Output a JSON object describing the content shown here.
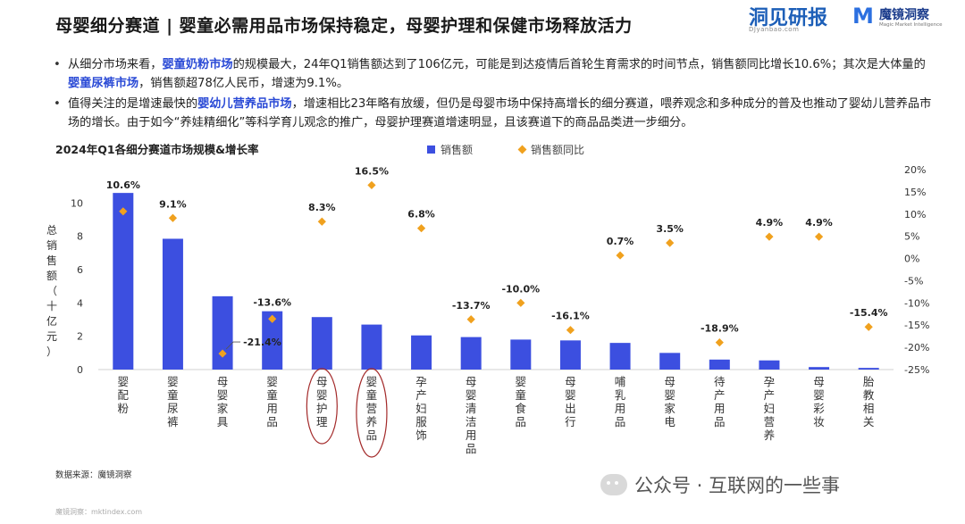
{
  "header": {
    "title": "母婴细分赛道 | 婴童必需用品市场保持稳定，母婴护理和保健市场释放活力",
    "logo1_text": "洞见研报",
    "logo1_sub": "DJyanbao.com",
    "logo2_mark": "M",
    "logo2_name": "魔镜洞察",
    "logo2_sub": "Magic Market Intelligence"
  },
  "bullets": [
    {
      "parts": [
        {
          "text": "从细分市场来看，",
          "hl": false
        },
        {
          "text": "婴童奶粉市场",
          "hl": true
        },
        {
          "text": "的规模最大，24年Q1销售额达到了106亿元，可能是到达疫情后首轮生育需求的时间节点，销售额同比增长10.6%；其次是大体量的",
          "hl": false
        },
        {
          "text": "婴童尿裤市场",
          "hl": true
        },
        {
          "text": "，销售额超78亿人民币，增速为9.1%。",
          "hl": false
        }
      ]
    },
    {
      "parts": [
        {
          "text": "值得关注的是增速最快的",
          "hl": false
        },
        {
          "text": "婴幼儿营养品市场",
          "hl": true
        },
        {
          "text": "，增速相比23年略有放缓，但仍是母婴市场中保持高增长的细分赛道，喂养观念和多种成分的普及也推动了婴幼儿营养品市场的增长。由于如今“养娃精细化”等科学育儿观念的推广，母婴护理赛道增速明显，且该赛道下的商品品类进一步细分。",
          "hl": false
        }
      ]
    }
  ],
  "chart_data": {
    "type": "bar",
    "title": "2024年Q1各细分赛道市场规模&增长率",
    "categories": [
      "婴配粉",
      "婴童尿裤",
      "母婴家具",
      "婴童用品",
      "母婴护理",
      "婴童营养品",
      "孕产妇服饰",
      "母婴清洁用品",
      "婴童食品",
      "母婴出行",
      "哺乳用品",
      "母婴家电",
      "待产用品",
      "孕产妇营养",
      "母婴彩妆",
      "胎教相关"
    ],
    "series": [
      {
        "name": "销售额",
        "type": "bar",
        "axis": "left",
        "values": [
          10.6,
          7.85,
          4.4,
          3.5,
          3.15,
          2.7,
          2.05,
          1.95,
          1.8,
          1.75,
          1.6,
          1.0,
          0.6,
          0.55,
          0.15,
          0.1
        ],
        "color": "#3c4fe0"
      },
      {
        "name": "销售额同比",
        "type": "scatter",
        "axis": "right",
        "values": [
          10.6,
          9.1,
          -21.4,
          -13.6,
          8.3,
          16.5,
          6.8,
          -13.7,
          -10.0,
          -16.1,
          0.7,
          3.5,
          -18.9,
          4.9,
          4.9,
          -15.4
        ],
        "color": "#f0a11e"
      }
    ],
    "value_labels": [
      "10.6%",
      "9.1%",
      "-21.4%",
      "-13.6%",
      "8.3%",
      "16.5%",
      "6.8%",
      "-13.7%",
      "-10.0%",
      "-16.1%",
      "0.7%",
      "3.5%",
      "-18.9%",
      "4.9%",
      "4.9%",
      "-15.4%"
    ],
    "ylabel": "总销售额（十亿元）",
    "ylim": [
      0,
      12
    ],
    "y_ticks": [
      0,
      2,
      4,
      6,
      8,
      10
    ],
    "y2lim": [
      -25,
      20
    ],
    "y2_ticks": [
      20,
      15,
      10,
      5,
      0,
      -5,
      -10,
      -15,
      -20,
      -25
    ],
    "y2_tick_labels": [
      "20%",
      "15%",
      "10%",
      "5%",
      "0%",
      "-5%",
      "-10%",
      "-15%",
      "-20%",
      "-25%"
    ],
    "highlighted": [
      "母婴护理",
      "婴童营养品"
    ],
    "legend_position": "top",
    "grid": false
  },
  "footer": {
    "source": "数据来源：魔镜洞察",
    "footer_source": "魔镜洞察：mktindex.com",
    "watermark": "公众号 · 互联网的一些事"
  },
  "colors": {
    "bar": "#3c4fe0",
    "marker": "#f0a11e",
    "highlight_circle": "#a32a2a",
    "accent_text": "#2b4bd6"
  }
}
